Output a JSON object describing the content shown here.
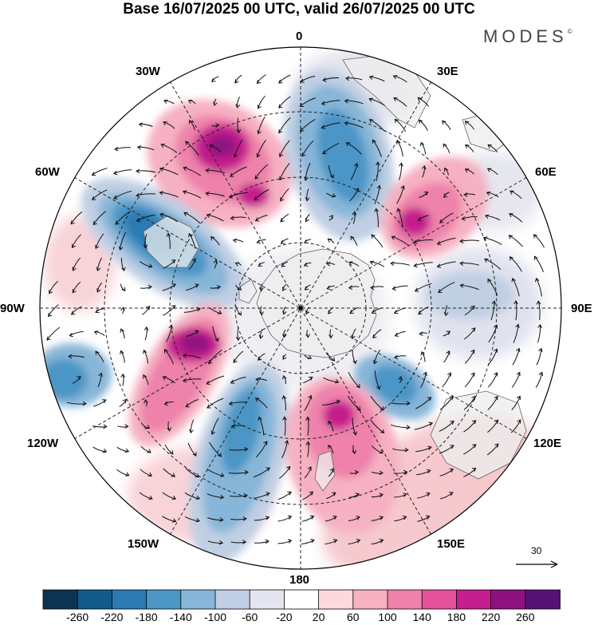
{
  "title": "Base 16/07/2025 00 UTC, valid 26/07/2025 00 UTC",
  "brand": "MODES",
  "brand_mark": "©",
  "longitude_labels": {
    "lon_0": "0",
    "lon_30e": "30E",
    "lon_60e": "60E",
    "lon_90e": "90E",
    "lon_120e": "120E",
    "lon_150e": "150E",
    "lon_180": "180",
    "lon_150w": "150W",
    "lon_120w": "120W",
    "lon_90w": "90W",
    "lon_60w": "60W",
    "lon_30w": "30W"
  },
  "colorbar": {
    "labels": [
      "-260",
      "-220",
      "-180",
      "-140",
      "-100",
      "-60",
      "-20",
      "20",
      "60",
      "100",
      "140",
      "180",
      "220",
      "260"
    ],
    "colors": [
      "#0d3352",
      "#135a8a",
      "#2b7ab4",
      "#4c96c6",
      "#87b6d8",
      "#c0cfe3",
      "#e4e5ef",
      "#ffffff",
      "#fcd9dd",
      "#f6b1c2",
      "#ee82aa",
      "#e3529a",
      "#c41f8c",
      "#8d1280",
      "#561274"
    ]
  },
  "vector_reference": "30",
  "map_colors": {
    "land_outline": "#666666",
    "grid_line": "#222222",
    "arrow": "#111111"
  }
}
